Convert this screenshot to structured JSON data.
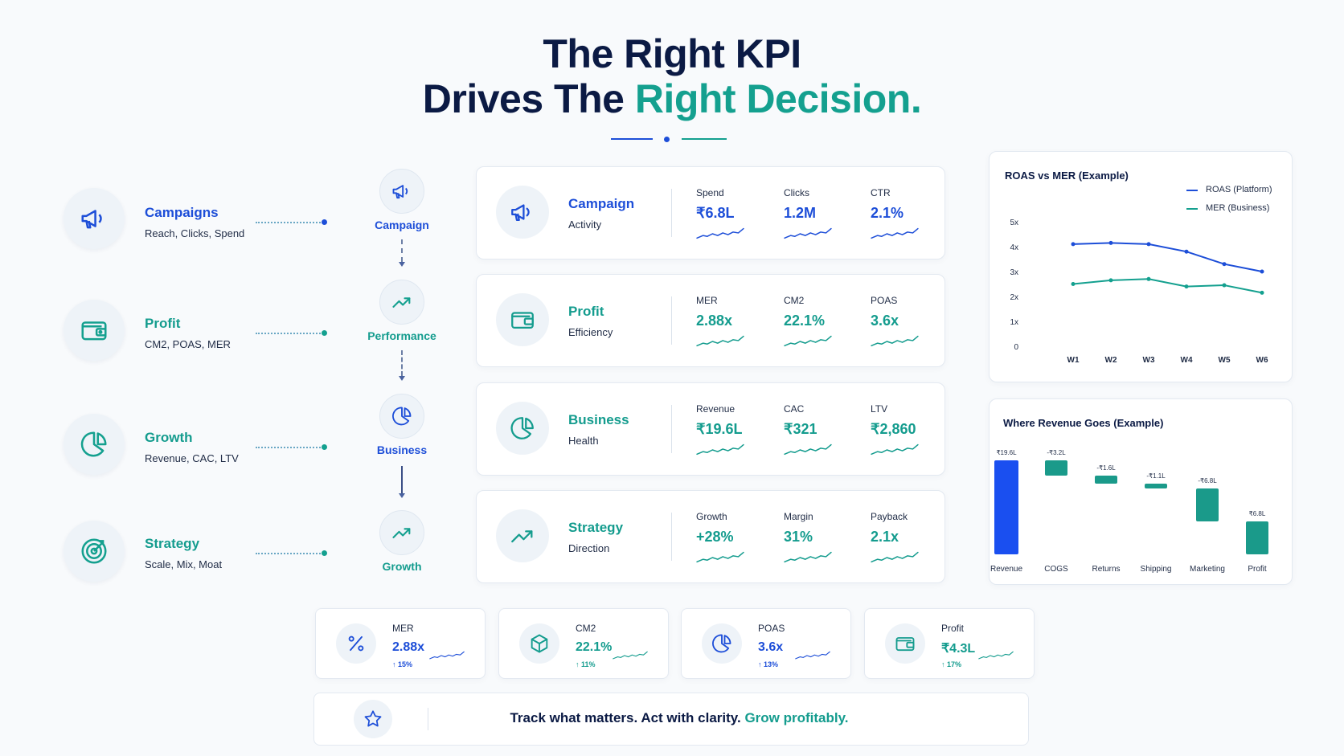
{
  "title": {
    "line1": "The Right KPI",
    "line2_prefix": "Drives The ",
    "line2_accent": "Right Decision."
  },
  "colors": {
    "navy": "#0b1a44",
    "blue": "#1d4ed8",
    "teal": "#14a08f",
    "bar_blue": "#1a4ff0",
    "bar_teal": "#1a9a8a"
  },
  "left": [
    {
      "name": "Campaigns",
      "sub": "Reach, Clicks, Spend",
      "icon": "megaphone-icon",
      "color": "blue"
    },
    {
      "name": "Profit",
      "sub": "CM2, POAS, MER",
      "icon": "wallet-icon",
      "color": "teal"
    },
    {
      "name": "Growth",
      "sub": "Revenue, CAC, LTV",
      "icon": "pie-chart-icon",
      "color": "teal"
    },
    {
      "name": "Strategy",
      "sub": "Scale, Mix, Moat",
      "icon": "target-icon",
      "color": "teal"
    }
  ],
  "flow": [
    {
      "label": "Campaign",
      "icon": "megaphone-icon",
      "color": "blue"
    },
    {
      "label": "Performance",
      "icon": "trend-up-icon",
      "color": "teal"
    },
    {
      "label": "Business",
      "icon": "pie-chart-icon",
      "color": "blue"
    },
    {
      "label": "Growth",
      "icon": "trend-up-icon",
      "color": "teal"
    }
  ],
  "cards": [
    {
      "title": "Campaign",
      "sub": "Activity",
      "icon": "megaphone-icon",
      "color": "blue",
      "metrics": [
        {
          "label": "Spend",
          "value": "₹6.8L"
        },
        {
          "label": "Clicks",
          "value": "1.2M"
        },
        {
          "label": "CTR",
          "value": "2.1%"
        }
      ]
    },
    {
      "title": "Profit",
      "sub": "Efficiency",
      "icon": "wallet-icon",
      "color": "teal",
      "metrics": [
        {
          "label": "MER",
          "value": "2.88x"
        },
        {
          "label": "CM2",
          "value": "22.1%"
        },
        {
          "label": "POAS",
          "value": "3.6x"
        }
      ]
    },
    {
      "title": "Business",
      "sub": "Health",
      "icon": "pie-chart-icon",
      "color": "teal",
      "metrics": [
        {
          "label": "Revenue",
          "value": "₹19.6L"
        },
        {
          "label": "CAC",
          "value": "₹321"
        },
        {
          "label": "LTV",
          "value": "₹2,860"
        }
      ]
    },
    {
      "title": "Strategy",
      "sub": "Direction",
      "icon": "trend-up-icon",
      "color": "teal",
      "metrics": [
        {
          "label": "Growth",
          "value": "+28%"
        },
        {
          "label": "Margin",
          "value": "31%"
        },
        {
          "label": "Payback",
          "value": "2.1x"
        }
      ]
    }
  ],
  "chart_data": [
    {
      "type": "line",
      "title": "ROAS vs MER (Example)",
      "x": [
        "W1",
        "W2",
        "W3",
        "W4",
        "W5",
        "W6"
      ],
      "yticks": [
        "5x",
        "4x",
        "3x",
        "2x",
        "1x",
        "0"
      ],
      "ylim": [
        0,
        5
      ],
      "legend": "top-right",
      "series": [
        {
          "name": "ROAS (Platform)",
          "values": [
            4.1,
            4.15,
            4.1,
            3.8,
            3.3,
            3.0
          ],
          "color": "#1d4ed8"
        },
        {
          "name": "MER (Business)",
          "values": [
            2.5,
            2.65,
            2.7,
            2.4,
            2.45,
            2.15
          ],
          "color": "#14a08f"
        }
      ]
    },
    {
      "type": "bar",
      "subtype": "waterfall",
      "title": "Where Revenue Goes (Example)",
      "categories": [
        "Revenue",
        "COGS",
        "Returns",
        "Shipping",
        "Marketing",
        "Profit"
      ],
      "values": [
        19.6,
        -3.2,
        -1.6,
        -1.1,
        -6.8,
        6.8
      ],
      "labels": [
        "₹19.6L",
        "-₹3.2L",
        "-₹1.6L",
        "-₹1.1L",
        "-₹6.8L",
        "₹6.8L"
      ]
    }
  ],
  "kpis": [
    {
      "label": "MER",
      "value": "2.88x",
      "change": "↑ 15%",
      "icon": "percent-icon",
      "color": "blue"
    },
    {
      "label": "CM2",
      "value": "22.1%",
      "change": "↑ 11%",
      "icon": "box-icon",
      "color": "teal"
    },
    {
      "label": "POAS",
      "value": "3.6x",
      "change": "↑ 13%",
      "icon": "pie-chart-icon",
      "color": "blue"
    },
    {
      "label": "Profit",
      "value": "₹4.3L",
      "change": "↑ 17%",
      "icon": "wallet-icon",
      "color": "teal"
    }
  ],
  "banner": {
    "part1": "Track what matters.",
    "part2": "Act with clarity.",
    "part3": "Grow profitably.",
    "icon": "star-icon"
  }
}
